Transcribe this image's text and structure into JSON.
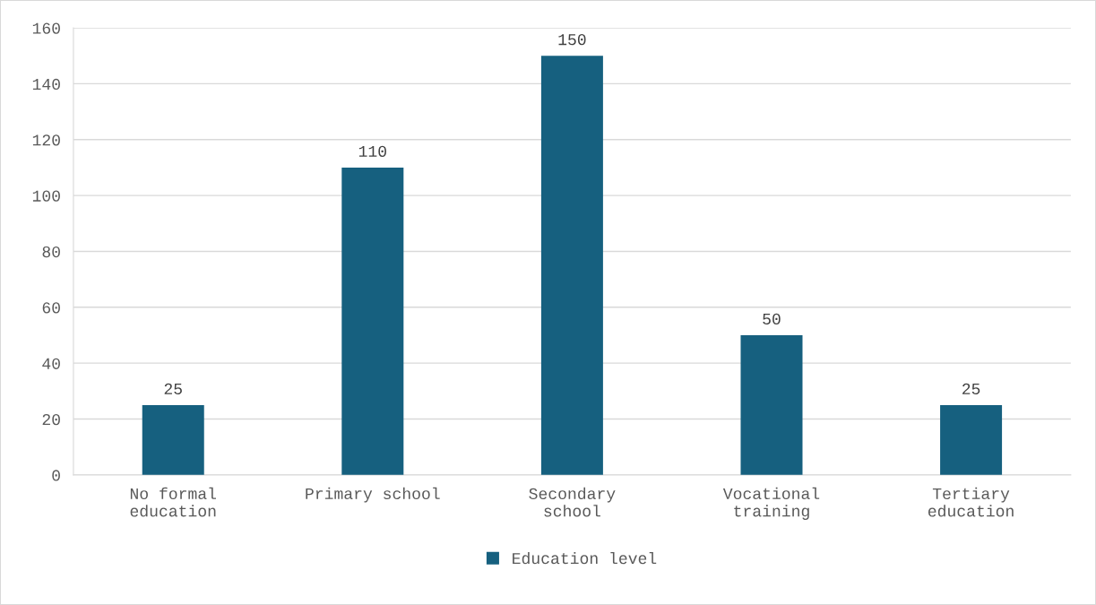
{
  "chart_data": {
    "type": "bar",
    "categories": [
      "No formal education",
      "Primary school",
      "Secondary school",
      "Vocational training",
      "Tertiary education"
    ],
    "series": [
      {
        "name": "Education level",
        "color": "#16607f",
        "values": [
          25,
          110,
          150,
          50,
          25
        ]
      }
    ],
    "ylim": [
      0,
      160
    ],
    "yticks": [
      0,
      20,
      40,
      60,
      80,
      100,
      120,
      140,
      160
    ],
    "grid": "y",
    "legend": "bottom",
    "data_labels": true
  }
}
